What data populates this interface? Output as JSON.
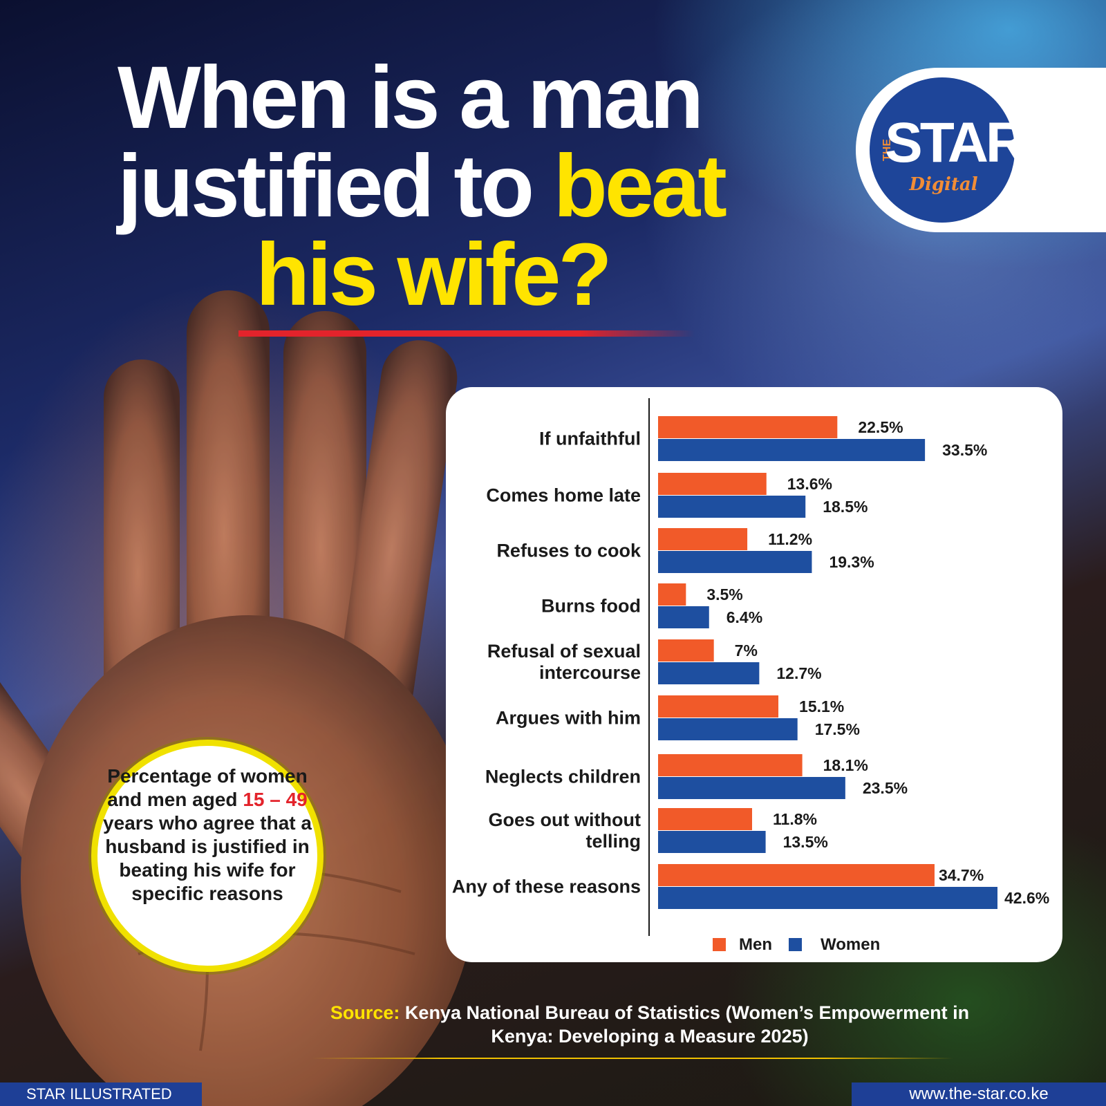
{
  "title": {
    "line1": "When is a man",
    "line2_a": "justified to ",
    "line2_b": "beat",
    "line3": "his wife?"
  },
  "logo": {
    "the": "THE",
    "star": "STAR",
    "digital": "Digital"
  },
  "note": {
    "part1": "Percentage of women and men aged ",
    "age_range": "15 – 49",
    "part2": " years who agree that a husband is justified in beating his wife for specific reasons"
  },
  "chart_data": {
    "type": "bar",
    "orientation": "horizontal",
    "categories": [
      "If unfaithful",
      "Comes home late",
      "Refuses to cook",
      "Burns food",
      "Refusal of sexual intercourse",
      "Argues with him",
      "Neglects children",
      "Goes out without telling",
      "Any of these reasons"
    ],
    "category_lines": [
      [
        "If unfaithful"
      ],
      [
        "Comes home late"
      ],
      [
        "Refuses to cook"
      ],
      [
        "Burns food"
      ],
      [
        "Refusal of sexual",
        "intercourse"
      ],
      [
        "Argues with him"
      ],
      [
        "Neglects children"
      ],
      [
        "Goes out without",
        "telling"
      ],
      [
        "Any of these reasons"
      ]
    ],
    "series": [
      {
        "name": "Men",
        "color": "#f15a29",
        "values": [
          22.5,
          13.6,
          11.2,
          3.5,
          7,
          15.1,
          18.1,
          11.8,
          34.7
        ],
        "labels": [
          "22.5%",
          "13.6%",
          "11.2%",
          "3.5%",
          "7%",
          "15.1%",
          "18.1%",
          "11.8%",
          "34.7%"
        ]
      },
      {
        "name": "Women",
        "color": "#1e4fa0",
        "values": [
          33.5,
          18.5,
          19.3,
          6.4,
          12.7,
          17.5,
          23.5,
          13.5,
          42.6
        ],
        "labels": [
          "33.5%",
          "18.5%",
          "19.3%",
          "6.4%",
          "12.7%",
          "17.5%",
          "23.5%",
          "13.5%",
          "42.6%"
        ]
      }
    ],
    "xlim": [
      0,
      42.6
    ],
    "grid": false,
    "legend_position": "bottom"
  },
  "source": {
    "label": "Source:",
    "text": " Kenya National Bureau of Statistics (Women’s Empowerment in Kenya: Developing a Measure 2025)"
  },
  "footer": {
    "left": "STAR ILLUSTRATED",
    "right": "www.the-star.co.ke"
  }
}
